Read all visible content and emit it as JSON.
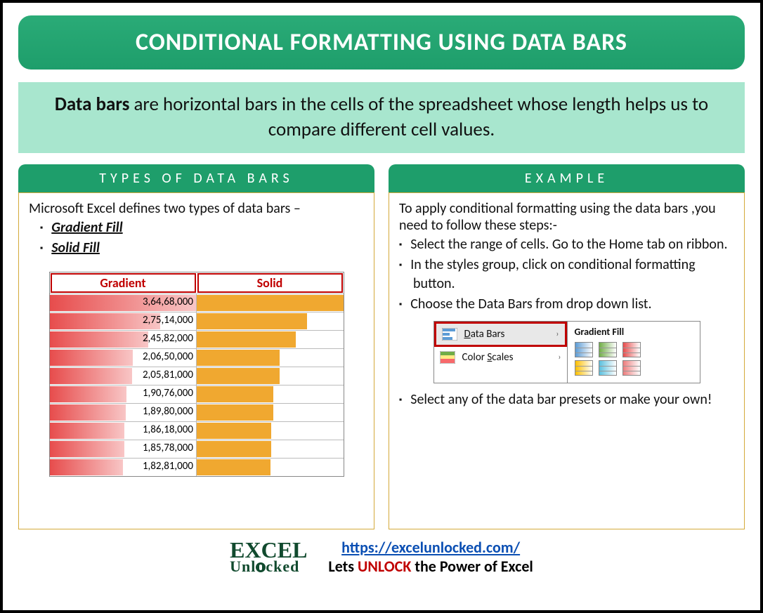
{
  "title": "CONDITIONAL FORMATTING USING DATA BARS",
  "description_bold": "Data bars",
  "description_rest": " are horizontal bars in the cells of the spreadsheet whose length helps us to compare different cell values.",
  "left": {
    "header": "TYPES OF DATA BARS",
    "intro": "Microsoft Excel defines two types of data bars –",
    "types": [
      "Gradient Fill",
      "Solid Fill"
    ],
    "table": {
      "col1_label": "Gradient",
      "col2_label": "Solid",
      "values_text": [
        "3,64,68,000",
        "2,75,14,000",
        "2,45,82,000",
        "2,06,50,000",
        "2,05,81,000",
        "1,90,76,000",
        "1,89,80,000",
        "1,86,18,000",
        "1,85,78,000",
        "1,82,81,000"
      ],
      "values_num": [
        36468000,
        27514000,
        24582000,
        20650000,
        20581000,
        19076000,
        18980000,
        18618000,
        18578000,
        18281000
      ],
      "max_value": 36468000,
      "gradient_color_from": "#e74c4c",
      "gradient_color_to": "#f8c6c6",
      "solid_color": "#f0a830",
      "header_color": "#c00000"
    }
  },
  "right": {
    "header": "EXAMPLE",
    "intro": "To apply conditional formatting using the data bars ,you need to follow these steps:-",
    "steps": [
      "Select the range of cells. Go to the Home tab on ribbon.",
      "In the styles group, click on conditional formatting button.",
      "Choose the Data Bars from drop down list."
    ],
    "final_step": "Select any of the data bar presets or make your own!",
    "menu": {
      "item1": "Data Bars",
      "item2": "Color Scales",
      "submenu_title": "Gradient Fill",
      "swatch_colors_row1": [
        "#5b9bd5",
        "#70ad47",
        "#e74c4c"
      ],
      "swatch_colors_row2": [
        "#ffc000",
        "#5b9bd5",
        "#ed7d7d"
      ]
    }
  },
  "footer": {
    "logo_top": "EXCEL",
    "logo_bottom": "Unl cked",
    "url": "https://excelunlocked.com/",
    "tagline_pre": "Lets ",
    "tagline_highlight": "UNLOCK",
    "tagline_post": " the Power of Excel"
  },
  "colors": {
    "banner_bg": "#1e9e6b",
    "desc_bg": "#a8e6ce",
    "body_border": "#d4a93a"
  }
}
